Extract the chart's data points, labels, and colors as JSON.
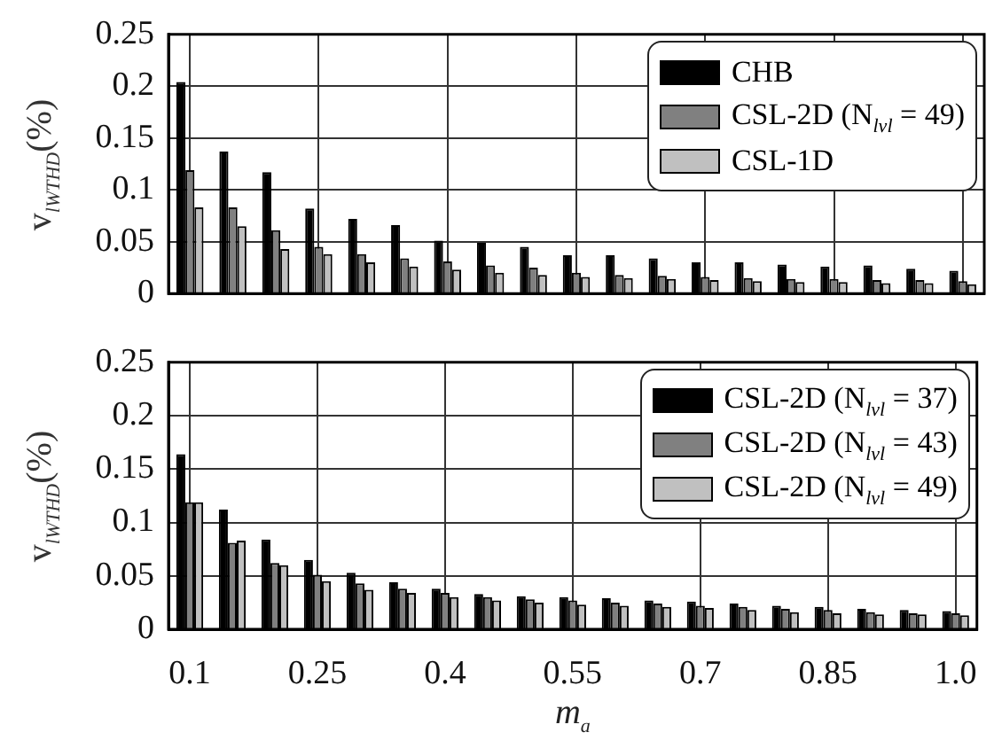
{
  "chart_data": [
    {
      "type": "bar",
      "ylabel": "v$_{lWTHD}$(%)",
      "categories": [
        "0.1",
        null,
        null,
        "0.25",
        null,
        null,
        "0.4",
        null,
        null,
        "0.55",
        null,
        null,
        "0.7",
        null,
        null,
        "0.85",
        null,
        null,
        "1.0"
      ],
      "series": [
        {
          "name": "CHB",
          "color": "#000000",
          "values": [
            0.204,
            0.137,
            0.117,
            0.082,
            0.072,
            0.066,
            0.051,
            0.049,
            0.045,
            0.037,
            0.037,
            0.034,
            0.03,
            0.03,
            0.028,
            0.026,
            0.027,
            0.024,
            0.022
          ]
        },
        {
          "name": "CSL-2D (N$_{lvl}$ = 49)",
          "color": "#808080",
          "values": [
            0.119,
            0.083,
            0.061,
            0.045,
            0.038,
            0.034,
            0.031,
            0.027,
            0.025,
            0.02,
            0.018,
            0.017,
            0.016,
            0.015,
            0.014,
            0.014,
            0.013,
            0.013,
            0.012
          ]
        },
        {
          "name": "CSL-1D",
          "color": "#c0c0c0",
          "values": [
            0.083,
            0.065,
            0.043,
            0.038,
            0.03,
            0.026,
            0.023,
            0.02,
            0.018,
            0.016,
            0.015,
            0.014,
            0.013,
            0.012,
            0.011,
            0.011,
            0.01,
            0.01,
            0.009
          ]
        }
      ],
      "ylim": [
        0,
        0.25
      ],
      "yticks": [
        0,
        0.05,
        0.1,
        0.15,
        0.2,
        0.25
      ],
      "grid": true,
      "legend": "top right",
      "tick_labels": "y"
    },
    {
      "type": "bar",
      "ylabel": "v$_{lWTHD}$(%)",
      "xlabel": "m$_{a}$",
      "categories": [
        "0.1",
        null,
        null,
        "0.25",
        null,
        null,
        "0.4",
        null,
        null,
        "0.55",
        null,
        null,
        "0.7",
        null,
        null,
        "0.85",
        null,
        null,
        "1.0"
      ],
      "series": [
        {
          "name": "CSL-2D (N$_{lvl}$ = 37)",
          "color": "#000000",
          "values": [
            0.164,
            0.112,
            0.084,
            0.065,
            0.053,
            0.044,
            0.038,
            0.033,
            0.031,
            0.03,
            0.029,
            0.027,
            0.026,
            0.024,
            0.022,
            0.021,
            0.019,
            0.018,
            0.017
          ]
        },
        {
          "name": "CSL-2D (N$_{lvl}$ = 43)",
          "color": "#808080",
          "values": [
            0.119,
            0.081,
            0.062,
            0.051,
            0.043,
            0.038,
            0.034,
            0.03,
            0.028,
            0.027,
            0.025,
            0.024,
            0.022,
            0.021,
            0.019,
            0.018,
            0.016,
            0.015,
            0.015
          ]
        },
        {
          "name": "CSL-2D (N$_{lvl}$ = 49)",
          "color": "#c0c0c0",
          "values": [
            0.119,
            0.083,
            0.06,
            0.045,
            0.037,
            0.034,
            0.03,
            0.027,
            0.025,
            0.023,
            0.022,
            0.021,
            0.02,
            0.018,
            0.016,
            0.015,
            0.014,
            0.014,
            0.013
          ]
        }
      ],
      "ylim": [
        0,
        0.25
      ],
      "yticks": [
        0,
        0.05,
        0.1,
        0.15,
        0.2,
        0.25
      ],
      "grid": true,
      "legend": "top right"
    }
  ]
}
